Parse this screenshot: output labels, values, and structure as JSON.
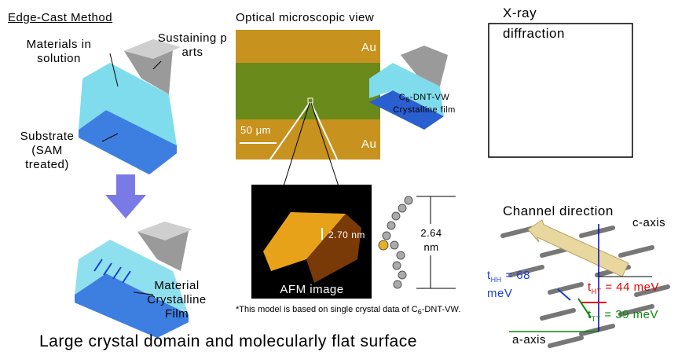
{
  "left": {
    "title": "Edge-Cast Method",
    "materials": "Materials in solution",
    "sustaining": "Sustaining parts",
    "substrate": "Substrate (SAM treated)",
    "film": "Material Crystalline Film"
  },
  "optical": {
    "title": "Optical microscopic view",
    "au_top": "Au",
    "au_bottom": "Au",
    "scale": "50 μm",
    "film_label": {
      "c": "C",
      "sub": "6",
      "name": "-DNT-VW",
      "desc": "Crystalline film"
    }
  },
  "xray": {
    "title": "X-ray diffraction"
  },
  "afm": {
    "label": "AFM image",
    "step": "2.70 nm",
    "height": "2.64 nm",
    "note": {
      "text": "*This model is based on single crystal data of",
      "c": "C",
      "sub": "6",
      "name": "-DNT-VW."
    }
  },
  "crystal": {
    "channel": "Channel direction",
    "c_axis": "c-axis",
    "a_axis": "a-axis",
    "t_hh": {
      "t": "t",
      "sub": "HH",
      "value": "= 68 meV"
    },
    "t_ht": {
      "t": "t",
      "sub": "HT",
      "value": "= 44 meV"
    },
    "t_tt": {
      "t": "t",
      "sub": "TT",
      "value": "= 39 meV"
    }
  },
  "caption": "Large crystal domain and molecularly flat surface"
}
